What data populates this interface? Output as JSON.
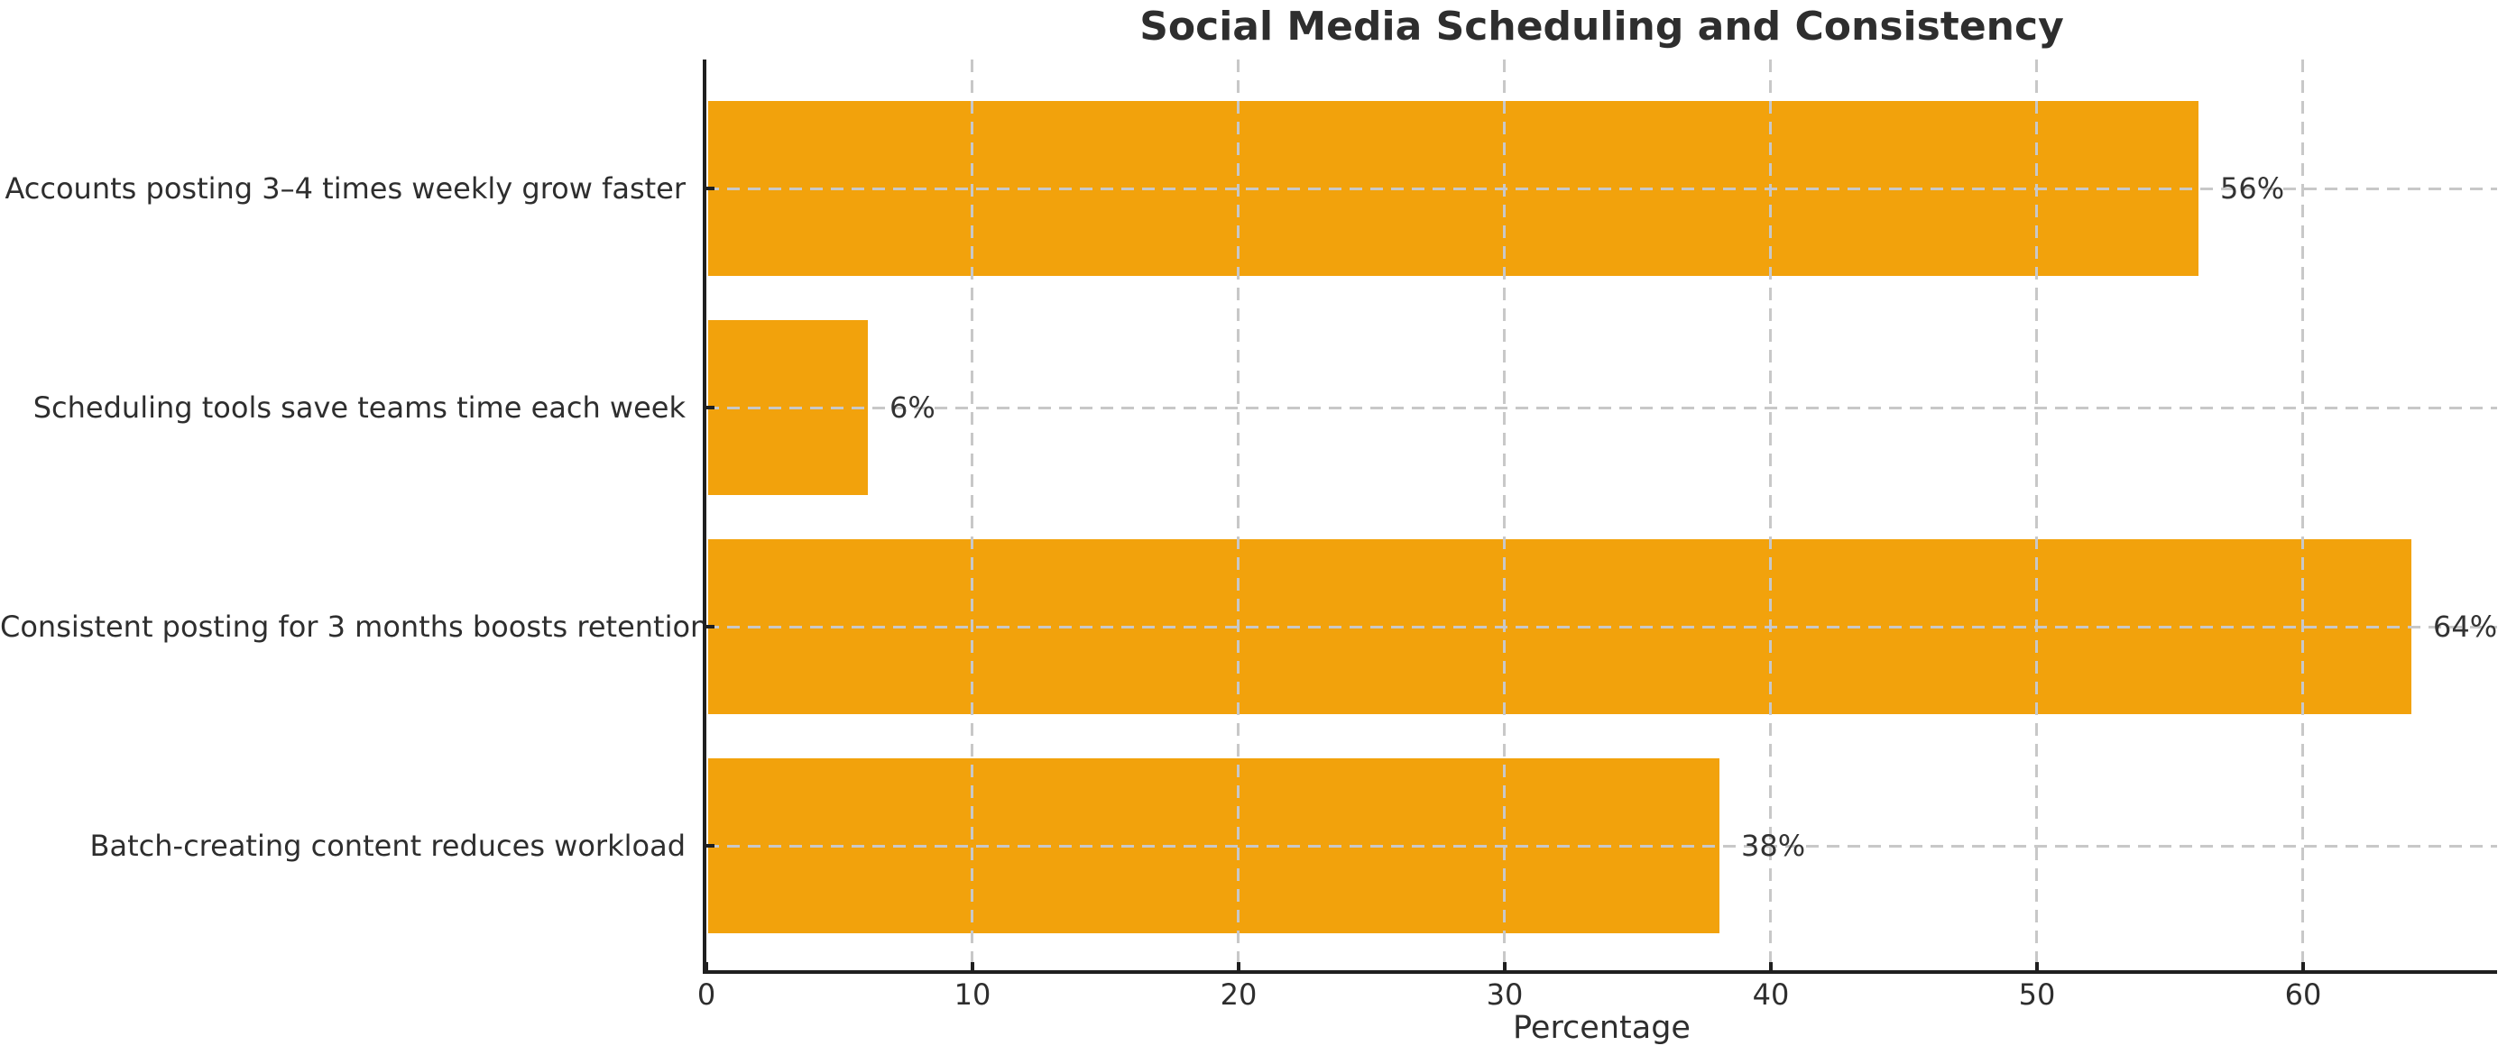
{
  "chart_data": {
    "type": "bar",
    "orientation": "horizontal",
    "title": "Social Media Scheduling and Consistency",
    "xlabel": "Percentage",
    "ylabel": "",
    "categories": [
      "Accounts posting 3–4 times weekly grow faster",
      "Scheduling tools save teams time each week",
      "Consistent posting for 3 months boosts retention",
      "Batch-creating content reduces workload"
    ],
    "values": [
      56,
      6,
      64,
      38
    ],
    "value_labels": [
      "56%",
      "6%",
      "64%",
      "38%"
    ],
    "xticks": [
      0,
      10,
      20,
      30,
      40,
      50,
      60
    ],
    "xtick_labels": [
      "0",
      "10",
      "20",
      "30",
      "40",
      "50",
      "60"
    ],
    "xlim": [
      0,
      67.3
    ],
    "grid": "dashed",
    "grid_on": true,
    "legend": "none",
    "colors": {
      "bar": "#F2A20C",
      "grid": "#c8c8c8",
      "axis": "#1f1f1f",
      "text": "#333333"
    }
  }
}
